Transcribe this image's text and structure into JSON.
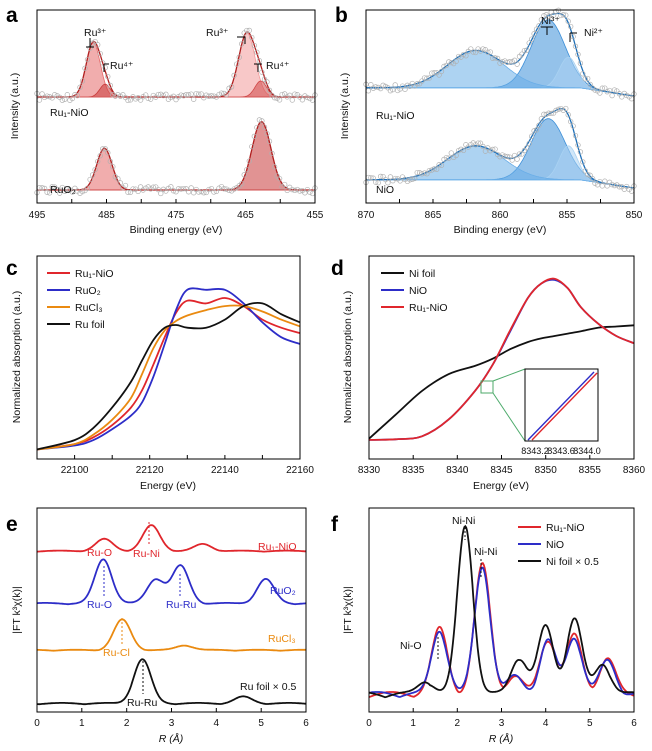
{
  "panels": {
    "a": {
      "label": "a",
      "xlabel": "Binding energy (eV)",
      "ylabel": "Intensity (a.u.)",
      "xticks": [
        "495",
        "485",
        "475",
        "465",
        "455"
      ],
      "series_labels": [
        "Ru₁-NiO",
        "RuO₂"
      ],
      "annotations": [
        "Ru³⁺",
        "Ru⁴⁺",
        "Ru³⁺",
        "Ru⁴⁺"
      ]
    },
    "b": {
      "label": "b",
      "xlabel": "Binding energy (eV)",
      "ylabel": "Intensity (a.u.)",
      "xticks": [
        "870",
        "865",
        "860",
        "855",
        "850"
      ],
      "series_labels": [
        "Ru₁-NiO",
        "NiO"
      ],
      "annotations": [
        "Ni³⁺",
        "Ni²⁺"
      ]
    },
    "c": {
      "label": "c",
      "xlabel": "Energy (eV)",
      "ylabel": "Normalized absorption (a.u.)",
      "xticks": [
        "22100",
        "22120",
        "22140",
        "22160"
      ],
      "legend": [
        "Ru₁-NiO",
        "RuO₂",
        "RuCl₃",
        "Ru foil"
      ]
    },
    "d": {
      "label": "d",
      "xlabel": "Energy (eV)",
      "ylabel": "Normalized absorption (a.u.)",
      "xticks": [
        "8330",
        "8335",
        "8340",
        "8345",
        "8350",
        "8355",
        "8360"
      ],
      "legend": [
        "Ni foil",
        "NiO",
        "Ru₁-NiO"
      ],
      "inset_ticks": [
        "8343.2",
        "8343.6",
        "8344.0"
      ]
    },
    "e": {
      "label": "e",
      "xlabel": "R (Å)",
      "ylabel": "|FT k³χ(k)|",
      "xticks": [
        "0",
        "1",
        "2",
        "3",
        "4",
        "5",
        "6"
      ],
      "series_labels": [
        "Ru₁-NiO",
        "RuO₂",
        "RuCl₃",
        "Ru foil × 0.5"
      ],
      "annotations": [
        "Ru-O",
        "Ru-Ni",
        "Ru-O",
        "Ru-Ru",
        "Ru-Cl",
        "Ru-Ru"
      ]
    },
    "f": {
      "label": "f",
      "xlabel": "R (Å)",
      "ylabel": "|FT k³χ(k)|",
      "xticks": [
        "0",
        "1",
        "2",
        "3",
        "4",
        "5",
        "6"
      ],
      "legend": [
        "Ru₁-NiO",
        "NiO",
        "Ni foil × 0.5"
      ],
      "annotations": [
        "Ni-O",
        "Ni-Ni",
        "Ni-Ni"
      ]
    }
  },
  "colors": {
    "red": "#e0262c",
    "blue": "#2d2dc8",
    "orange": "#ea8a10",
    "black": "#111111",
    "xps_red_fill": "#e66a6a",
    "xps_blue_fill": "#3d8fd8",
    "inset_box": "#4caa6a"
  },
  "chart_data": [
    {
      "panel": "a",
      "type": "area",
      "xlabel": "Binding energy (eV)",
      "ylabel": "Intensity (a.u.)",
      "xlim": [
        495,
        455
      ],
      "reversed_x": true,
      "series": [
        {
          "name": "Ru₁-NiO",
          "peaks": [
            {
              "center": 486.9,
              "fwhm": 2.4,
              "height": 0.85
            },
            {
              "center": 485.2,
              "fwhm": 1.8,
              "height": 0.2
            },
            {
              "center": 464.8,
              "fwhm": 2.8,
              "height": 1.0
            },
            {
              "center": 462.8,
              "fwhm": 2.0,
              "height": 0.25
            }
          ]
        },
        {
          "name": "RuO₂",
          "peaks": [
            {
              "center": 485.3,
              "fwhm": 2.6,
              "height": 0.55
            },
            {
              "center": 462.7,
              "fwhm": 3.2,
              "height": 0.9
            }
          ]
        }
      ]
    },
    {
      "panel": "b",
      "type": "area",
      "xlabel": "Binding energy (eV)",
      "ylabel": "Intensity (a.u.)",
      "xlim": [
        870,
        850
      ],
      "reversed_x": true,
      "series": [
        {
          "name": "Ru₁-NiO",
          "peaks": [
            {
              "center": 856.4,
              "fwhm": 3.0,
              "height": 1.0,
              "label": "Ni³⁺"
            },
            {
              "center": 854.9,
              "fwhm": 1.6,
              "height": 0.45,
              "label": "Ni²⁺"
            },
            {
              "center": 861.8,
              "fwhm": 5.0,
              "height": 0.55
            }
          ]
        },
        {
          "name": "NiO",
          "peaks": [
            {
              "center": 856.4,
              "fwhm": 3.0,
              "height": 0.9
            },
            {
              "center": 854.9,
              "fwhm": 1.6,
              "height": 0.5
            },
            {
              "center": 861.8,
              "fwhm": 5.0,
              "height": 0.5
            }
          ]
        }
      ]
    },
    {
      "panel": "c",
      "type": "line",
      "xlabel": "Energy (eV)",
      "ylabel": "Normalized absorption (a.u.)",
      "xlim": [
        22090,
        22160
      ],
      "x": [
        22090,
        22100,
        22105,
        22110,
        22115,
        22118,
        22121,
        22124,
        22127,
        22130,
        22135,
        22140,
        22145,
        22150,
        22155,
        22160
      ],
      "series": [
        {
          "name": "Ru₁-NiO",
          "values": [
            0.02,
            0.06,
            0.11,
            0.2,
            0.33,
            0.46,
            0.65,
            0.85,
            1.03,
            1.12,
            1.1,
            1.14,
            1.08,
            0.98,
            0.92,
            0.88
          ]
        },
        {
          "name": "RuO₂",
          "values": [
            0.02,
            0.05,
            0.09,
            0.17,
            0.27,
            0.37,
            0.56,
            0.8,
            1.05,
            1.2,
            1.2,
            1.2,
            1.1,
            0.96,
            0.85,
            0.8
          ]
        },
        {
          "name": "RuCl₃",
          "values": [
            0.02,
            0.06,
            0.13,
            0.24,
            0.4,
            0.58,
            0.77,
            0.9,
            0.97,
            1.01,
            1.05,
            1.08,
            1.08,
            1.04,
            0.98,
            0.93
          ]
        },
        {
          "name": "Ru foil",
          "values": [
            0.02,
            0.09,
            0.18,
            0.33,
            0.52,
            0.68,
            0.83,
            0.92,
            0.94,
            0.92,
            0.92,
            0.98,
            1.08,
            1.1,
            1.02,
            0.96
          ]
        }
      ]
    },
    {
      "panel": "d",
      "type": "line",
      "xlabel": "Energy (eV)",
      "ylabel": "Normalized absorption (a.u.)",
      "xlim": [
        8330,
        8360
      ],
      "x": [
        8330,
        8333,
        8336,
        8339,
        8342,
        8344,
        8346,
        8348,
        8349.5,
        8351,
        8352.5,
        8354,
        8356,
        8358,
        8360
      ],
      "series": [
        {
          "name": "Ni foil",
          "values": [
            0.02,
            0.22,
            0.42,
            0.56,
            0.63,
            0.69,
            0.77,
            0.83,
            0.86,
            0.88,
            0.9,
            0.92,
            0.95,
            0.96,
            0.97
          ]
        },
        {
          "name": "NiO",
          "values": [
            0.01,
            0.015,
            0.04,
            0.18,
            0.42,
            0.64,
            0.92,
            1.2,
            1.32,
            1.35,
            1.28,
            1.12,
            0.98,
            0.88,
            0.82
          ]
        },
        {
          "name": "Ru₁-NiO",
          "values": [
            0.01,
            0.015,
            0.04,
            0.18,
            0.42,
            0.64,
            0.93,
            1.2,
            1.32,
            1.36,
            1.28,
            1.12,
            0.98,
            0.88,
            0.82
          ]
        }
      ],
      "inset": {
        "xlim": [
          8343.0,
          8344.2
        ],
        "xticks": [
          8343.2,
          8343.6,
          8344.0
        ]
      }
    },
    {
      "panel": "e",
      "type": "line",
      "xlabel": "R (Å)",
      "ylabel": "|FT k³χ(k)|",
      "xlim": [
        0,
        6
      ],
      "series": [
        {
          "name": "Ru₁-NiO",
          "peaks": [
            {
              "r": 1.5,
              "amp": 0.35
            },
            {
              "r": 2.55,
              "amp": 0.75
            },
            {
              "r": 3.7,
              "amp": 0.2
            }
          ]
        },
        {
          "name": "RuO₂",
          "peaks": [
            {
              "r": 1.48,
              "amp": 1.0
            },
            {
              "r": 2.65,
              "amp": 0.55
            },
            {
              "r": 3.2,
              "amp": 0.85
            },
            {
              "r": 5.1,
              "amp": 0.55
            }
          ]
        },
        {
          "name": "RuCl₃",
          "peaks": [
            {
              "r": 1.9,
              "amp": 0.95
            },
            {
              "r": 3.3,
              "amp": 0.15
            }
          ]
        },
        {
          "name": "Ru foil × 0.5",
          "peaks": [
            {
              "r": 2.35,
              "amp": 1.0
            },
            {
              "r": 4.6,
              "amp": 0.15
            }
          ]
        }
      ]
    },
    {
      "panel": "f",
      "type": "line",
      "xlabel": "R (Å)",
      "ylabel": "|FT k³χ(k)|",
      "xlim": [
        0,
        6
      ],
      "series": [
        {
          "name": "Ru₁-NiO",
          "peaks": [
            {
              "r": 1.6,
              "amp": 0.38
            },
            {
              "r": 2.57,
              "amp": 0.75
            },
            {
              "r": 3.3,
              "amp": 0.1
            },
            {
              "r": 4.05,
              "amp": 0.32
            },
            {
              "r": 4.65,
              "amp": 0.34
            },
            {
              "r": 5.4,
              "amp": 0.2
            }
          ]
        },
        {
          "name": "NiO",
          "peaks": [
            {
              "r": 1.6,
              "amp": 0.37
            },
            {
              "r": 2.57,
              "amp": 0.74
            },
            {
              "r": 3.3,
              "amp": 0.1
            },
            {
              "r": 4.05,
              "amp": 0.31
            },
            {
              "r": 4.65,
              "amp": 0.33
            },
            {
              "r": 5.4,
              "amp": 0.19
            }
          ]
        },
        {
          "name": "Ni foil × 0.5",
          "peaks": [
            {
              "r": 1.3,
              "amp": 0.08
            },
            {
              "r": 2.18,
              "amp": 1.0
            },
            {
              "r": 3.4,
              "amp": 0.22
            },
            {
              "r": 4.0,
              "amp": 0.4
            },
            {
              "r": 4.65,
              "amp": 0.45
            },
            {
              "r": 5.3,
              "amp": 0.18
            }
          ]
        }
      ]
    }
  ]
}
